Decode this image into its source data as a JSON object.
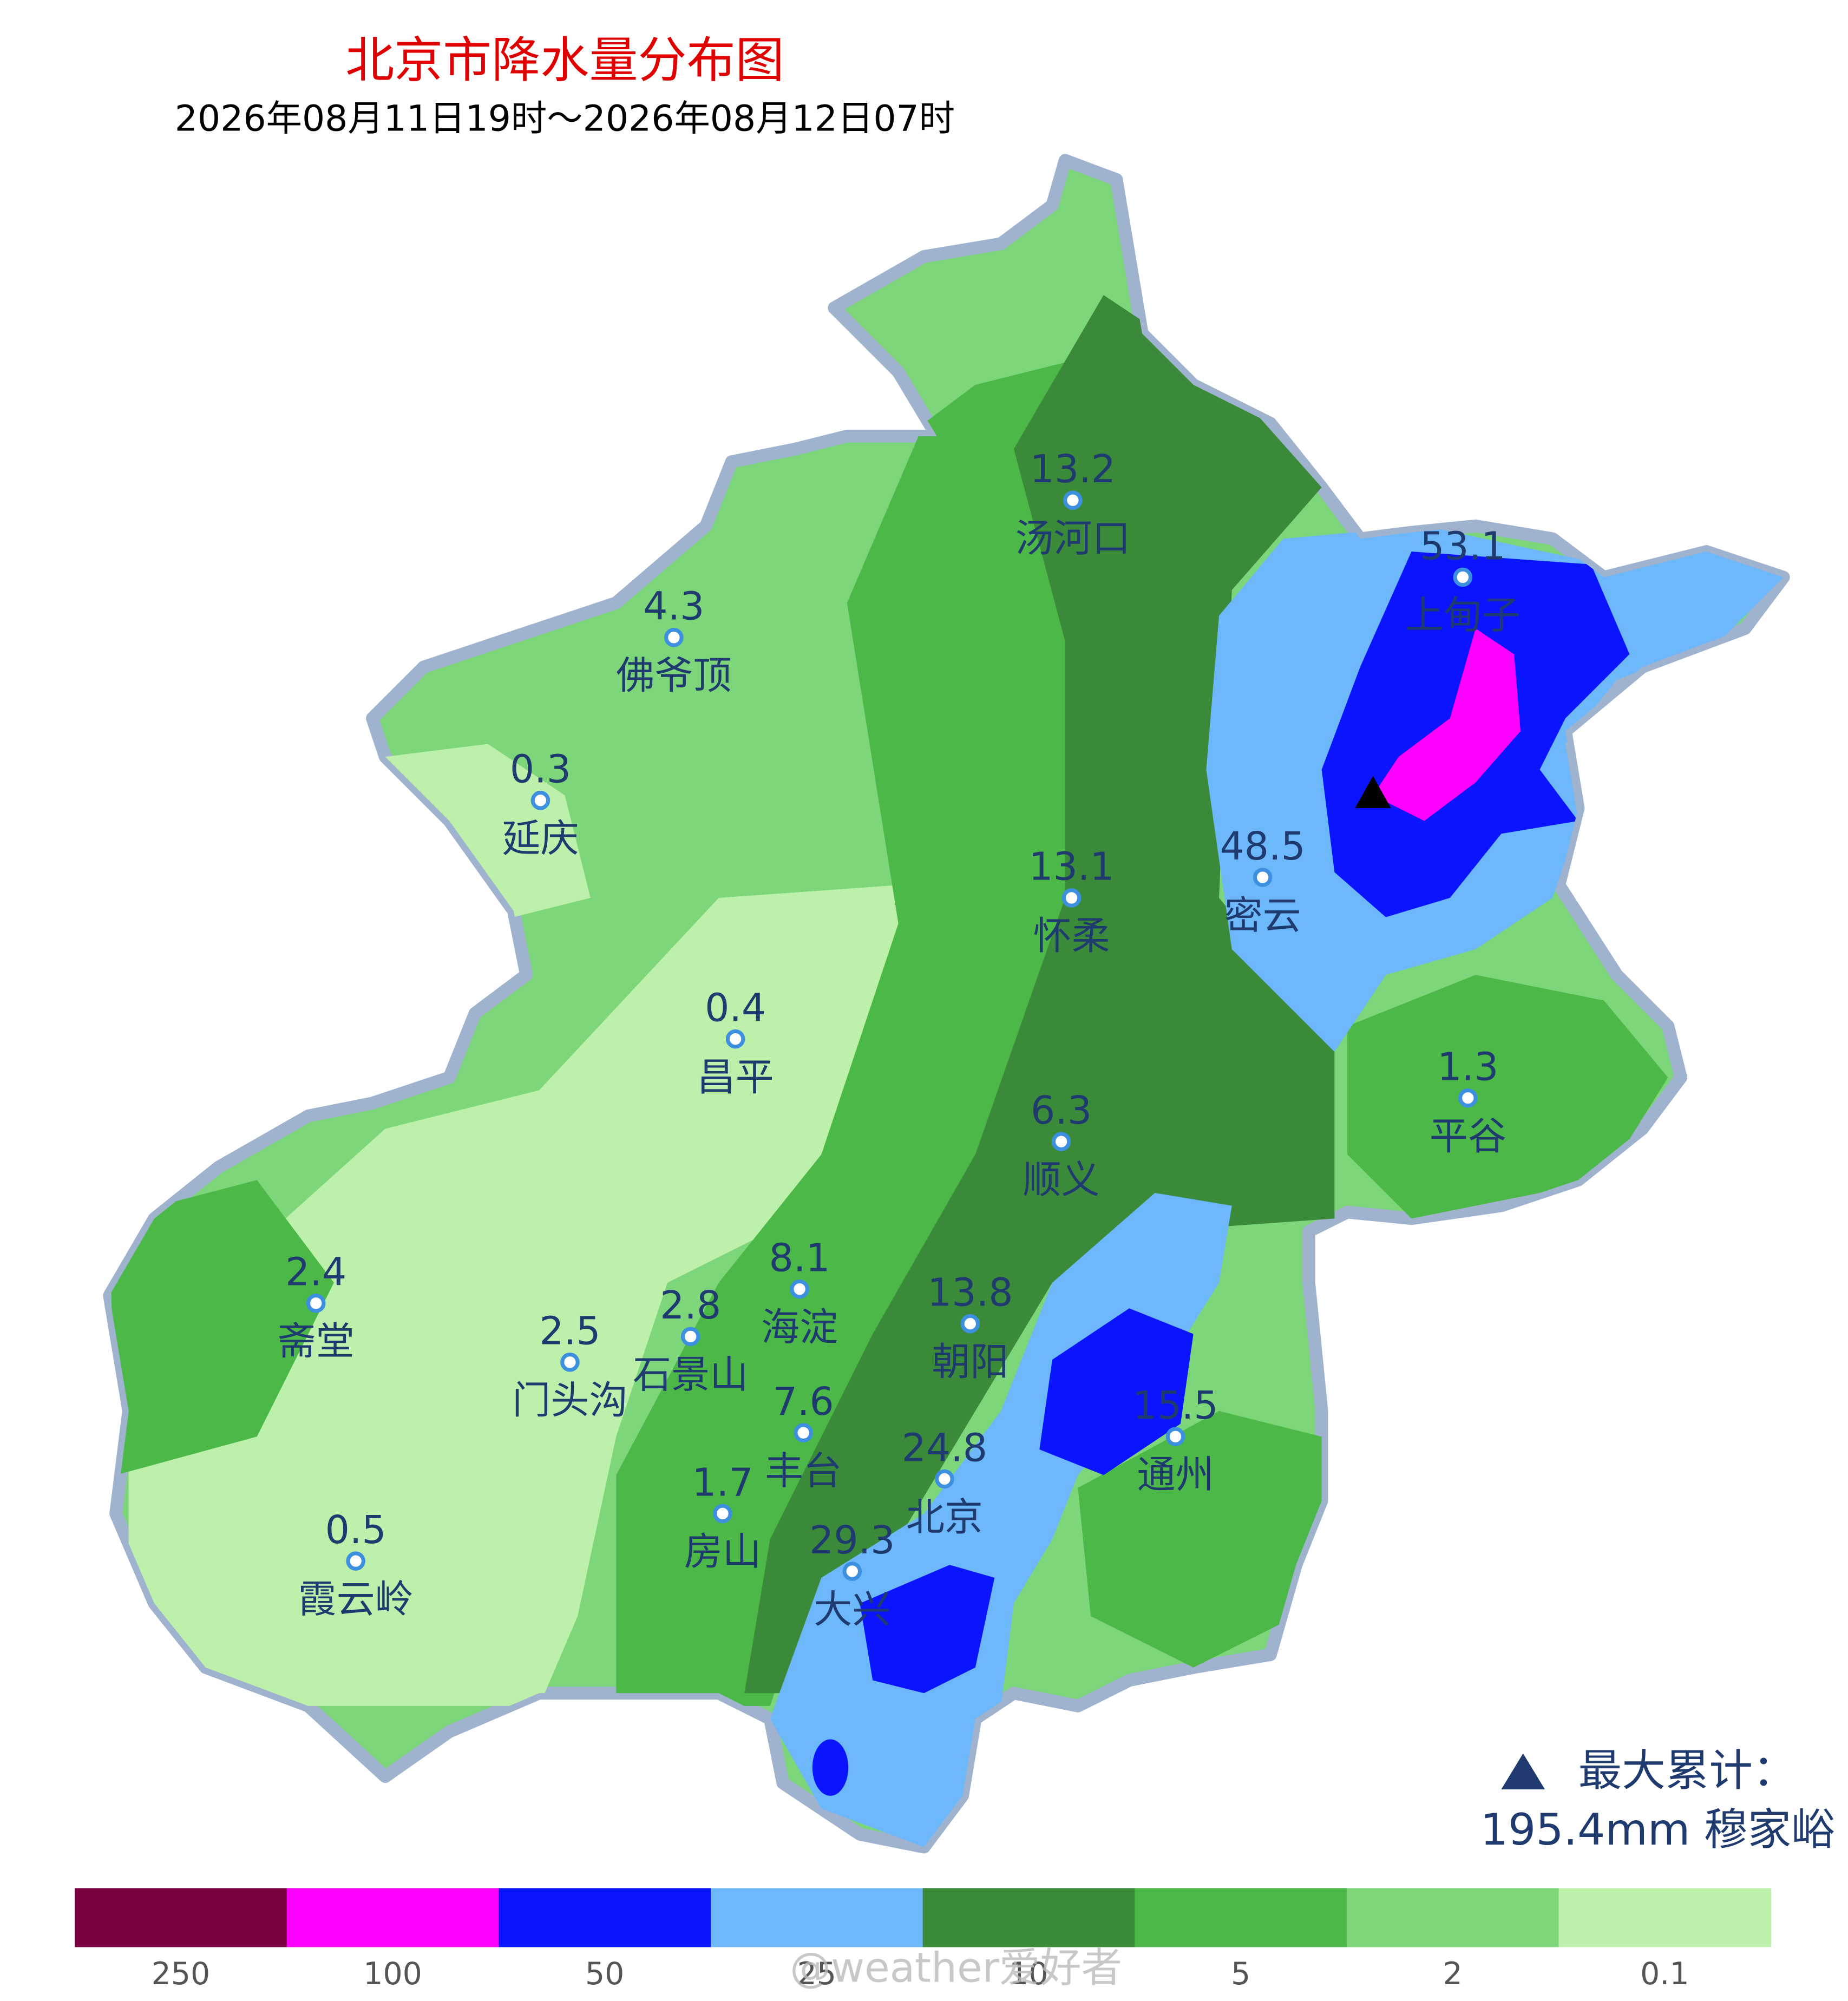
{
  "header": {
    "title": "北京市降水量分布图",
    "subtitle": "2026年08月11日19时～2026年08月12日07时"
  },
  "stations": [
    {
      "name": "汤河口",
      "value": 13.2
    },
    {
      "name": "上甸子",
      "value": 53.1
    },
    {
      "name": "佛爷顶",
      "value": 4.3
    },
    {
      "name": "延庆",
      "value": 0.3
    },
    {
      "name": "密云",
      "value": 48.5
    },
    {
      "name": "怀柔",
      "value": 13.1
    },
    {
      "name": "昌平",
      "value": 0.4
    },
    {
      "name": "平谷",
      "value": 1.3
    },
    {
      "name": "顺义",
      "value": 6.3
    },
    {
      "name": "斋堂",
      "value": 2.4
    },
    {
      "name": "海淀",
      "value": 8.1
    },
    {
      "name": "朝阳",
      "value": 13.8
    },
    {
      "name": "石景山",
      "value": 2.8
    },
    {
      "name": "门头沟",
      "value": 2.5
    },
    {
      "name": "丰台",
      "value": 7.6
    },
    {
      "name": "通州",
      "value": 15.5
    },
    {
      "name": "北京",
      "value": 24.8
    },
    {
      "name": "房山",
      "value": 1.7
    },
    {
      "name": "霞云岭",
      "value": 0.5
    },
    {
      "name": "大兴",
      "value": 29.3
    }
  ],
  "max": {
    "label": "最大累计：",
    "text": "195.4mm 穆家峪"
  },
  "legend": {
    "colors": [
      "#7b0040",
      "#ff00ff",
      "#0a14ff",
      "#6cb8fb",
      "#3a8a3a",
      "#4cb848",
      "#7dd77a",
      "#bdf0ab"
    ],
    "labels": [
      250,
      100,
      50,
      25,
      10,
      5,
      2,
      0.1
    ]
  },
  "watermark": "@weather爱好者"
}
